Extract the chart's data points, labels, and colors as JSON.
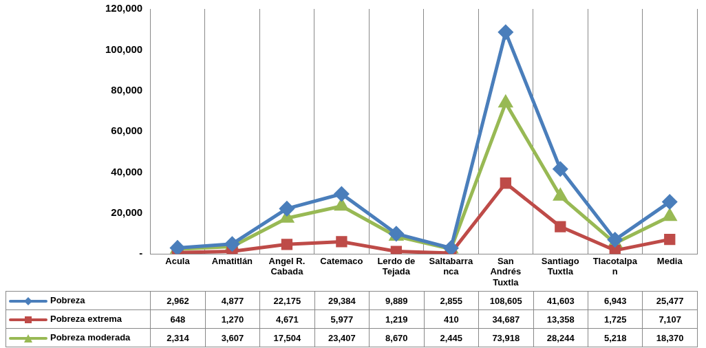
{
  "chart_data": {
    "type": "line",
    "categories": [
      "Acula",
      "Amatitlán",
      "Angel R. Cabada",
      "Catemaco",
      "Lerdo de Tejada",
      "Saltabarranca",
      "San Andrés Tuxtla",
      "Santiago Tuxtla",
      "Tlacotalpan",
      "Media"
    ],
    "series": [
      {
        "name": "Pobreza",
        "color": "#4a7ebb",
        "marker": "diamond",
        "values": [
          2962,
          4877,
          22175,
          29384,
          9889,
          2855,
          108605,
          41603,
          6943,
          25477
        ],
        "value_labels": [
          "2,962",
          "4,877",
          "22,175",
          "29,384",
          "9,889",
          "2,855",
          "108,605",
          "41,603",
          "6,943",
          "25,477"
        ]
      },
      {
        "name": "Pobreza extrema",
        "color": "#be4b48",
        "marker": "square",
        "values": [
          648,
          1270,
          4671,
          5977,
          1219,
          410,
          34687,
          13358,
          1725,
          7107
        ],
        "value_labels": [
          "648",
          "1,270",
          "4,671",
          "5,977",
          "1,219",
          "410",
          "34,687",
          "13,358",
          "1,725",
          "7,107"
        ]
      },
      {
        "name": "Pobreza moderada",
        "color": "#98b954",
        "marker": "triangle",
        "values": [
          2314,
          3607,
          17504,
          23407,
          8670,
          2445,
          73918,
          28244,
          5218,
          18370
        ],
        "value_labels": [
          "2,314",
          "3,607",
          "17,504",
          "23,407",
          "8,670",
          "2,445",
          "73,918",
          "28,244",
          "5,218",
          "18,370"
        ]
      }
    ],
    "ylim": [
      0,
      120000
    ],
    "yticks": [
      {
        "value": 0,
        "label": "-"
      },
      {
        "value": 20000,
        "label": "20,000"
      },
      {
        "value": 40000,
        "label": "40,000"
      },
      {
        "value": 60000,
        "label": "60,000"
      },
      {
        "value": 80000,
        "label": "80,000"
      },
      {
        "value": 100000,
        "label": "100,000"
      },
      {
        "value": 120000,
        "label": "120,000"
      }
    ],
    "grid": "x",
    "legend": "bottom",
    "line_style": "solid"
  }
}
